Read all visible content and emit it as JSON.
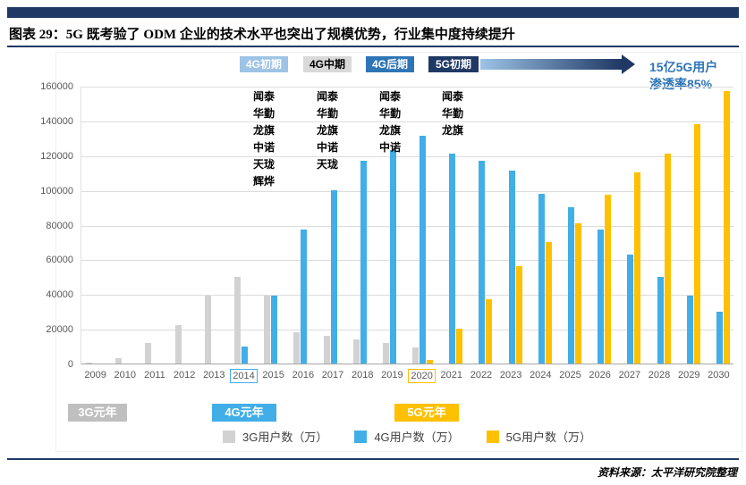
{
  "header": {
    "title": "图表 29：5G 既考验了 ODM 企业的技术水平也突出了规模优势，行业集中度持续提升"
  },
  "phases": [
    {
      "label": "4G初期",
      "bg": "#9DC3E6",
      "color": "#ffffff"
    },
    {
      "label": "4G中期",
      "bg": "#D9D9D9",
      "color": "#000000"
    },
    {
      "label": "4G后期",
      "bg": "#2E75B6",
      "color": "#ffffff"
    },
    {
      "label": "5G初期",
      "bg": "#1F3864",
      "color": "#ffffff"
    }
  ],
  "phase_companies": [
    [
      "闻泰",
      "华勤",
      "龙旗",
      "中诺",
      "天珑",
      "辉烨"
    ],
    [
      "闻泰",
      "华勤",
      "龙旗",
      "中诺",
      "天珑"
    ],
    [
      "闻泰",
      "华勤",
      "龙旗",
      "中诺"
    ],
    [
      "闻泰",
      "华勤",
      "龙旗"
    ]
  ],
  "annotation": {
    "line1": "15亿5G用户",
    "line2": "渗透率85%"
  },
  "era_labels": [
    {
      "label": "3G元年",
      "bg": "#BFBFBF"
    },
    {
      "label": "4G元年",
      "bg": "#41AEE8"
    },
    {
      "label": "5G元年",
      "bg": "#FFC000"
    }
  ],
  "chart_data": {
    "type": "bar",
    "title": "图表 29：5G 既考验了 ODM 企业的技术水平也突出了规模优势，行业集中度持续提升",
    "xlabel": "",
    "ylabel": "",
    "ylim": [
      0,
      160000
    ],
    "ytick_step": 20000,
    "grid": true,
    "legend_position": "bottom",
    "categories": [
      2009,
      2010,
      2011,
      2012,
      2013,
      2014,
      2015,
      2016,
      2017,
      2018,
      2019,
      2020,
      2021,
      2022,
      2023,
      2024,
      2025,
      2026,
      2027,
      2028,
      2029,
      2030
    ],
    "series": [
      {
        "key": "3g",
        "name": "3G用户数（万）",
        "color": "#D2D2D2",
        "values": [
          700,
          3000,
          12000,
          22000,
          39000,
          50000,
          39000,
          18000,
          16000,
          14000,
          12000,
          9500,
          null,
          null,
          null,
          null,
          null,
          null,
          null,
          null,
          null,
          null
        ]
      },
      {
        "key": "4g",
        "name": "4G用户数（万）",
        "color": "#41AEE8",
        "values": [
          null,
          null,
          null,
          null,
          null,
          10000,
          39000,
          77000,
          100000,
          117000,
          123000,
          131000,
          121000,
          117000,
          111000,
          98000,
          90000,
          77000,
          63000,
          50000,
          39000,
          30000
        ]
      },
      {
        "key": "5g",
        "name": "5G用户数（万）",
        "color": "#FFC000",
        "values": [
          null,
          null,
          null,
          null,
          null,
          null,
          null,
          null,
          null,
          null,
          null,
          2000,
          20000,
          37000,
          56000,
          70000,
          81000,
          97000,
          110000,
          121000,
          138000,
          157000
        ]
      }
    ],
    "highlight_years": {
      "2014": "#41AEE8",
      "2020": "#FFC000"
    }
  },
  "footer": {
    "source": "资料来源：太平洋研究院整理"
  }
}
